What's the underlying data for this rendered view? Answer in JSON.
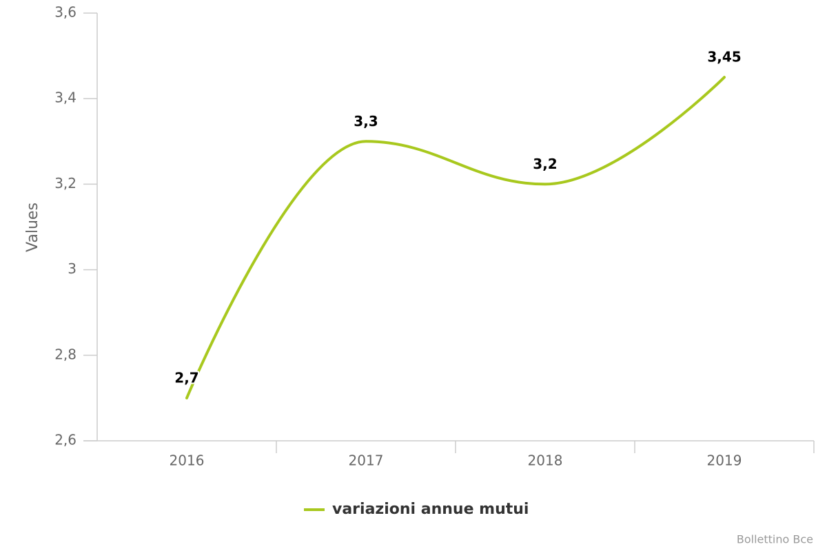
{
  "chart_data": {
    "type": "line",
    "y_axis_title": "Values",
    "credits": "Bollettino Bce",
    "categories": [
      "2016",
      "2017",
      "2018",
      "2019"
    ],
    "series": [
      {
        "name": "variazioni annue mutui",
        "color": "#a8c81e",
        "values": [
          2.7,
          3.3,
          3.2,
          3.45
        ],
        "value_labels": [
          "2,7",
          "3,3",
          "3,2",
          "3,45"
        ]
      }
    ],
    "ylim": [
      2.6,
      3.6
    ],
    "yticks": [
      {
        "value": 2.6,
        "label": "2,6"
      },
      {
        "value": 2.8,
        "label": "2,8"
      },
      3,
      {
        "value": 3.2,
        "label": "3,2"
      },
      {
        "value": 3.4,
        "label": "3,4"
      },
      {
        "value": 3.6,
        "label": "3,6"
      }
    ],
    "grid": false,
    "legend": "bottom"
  }
}
